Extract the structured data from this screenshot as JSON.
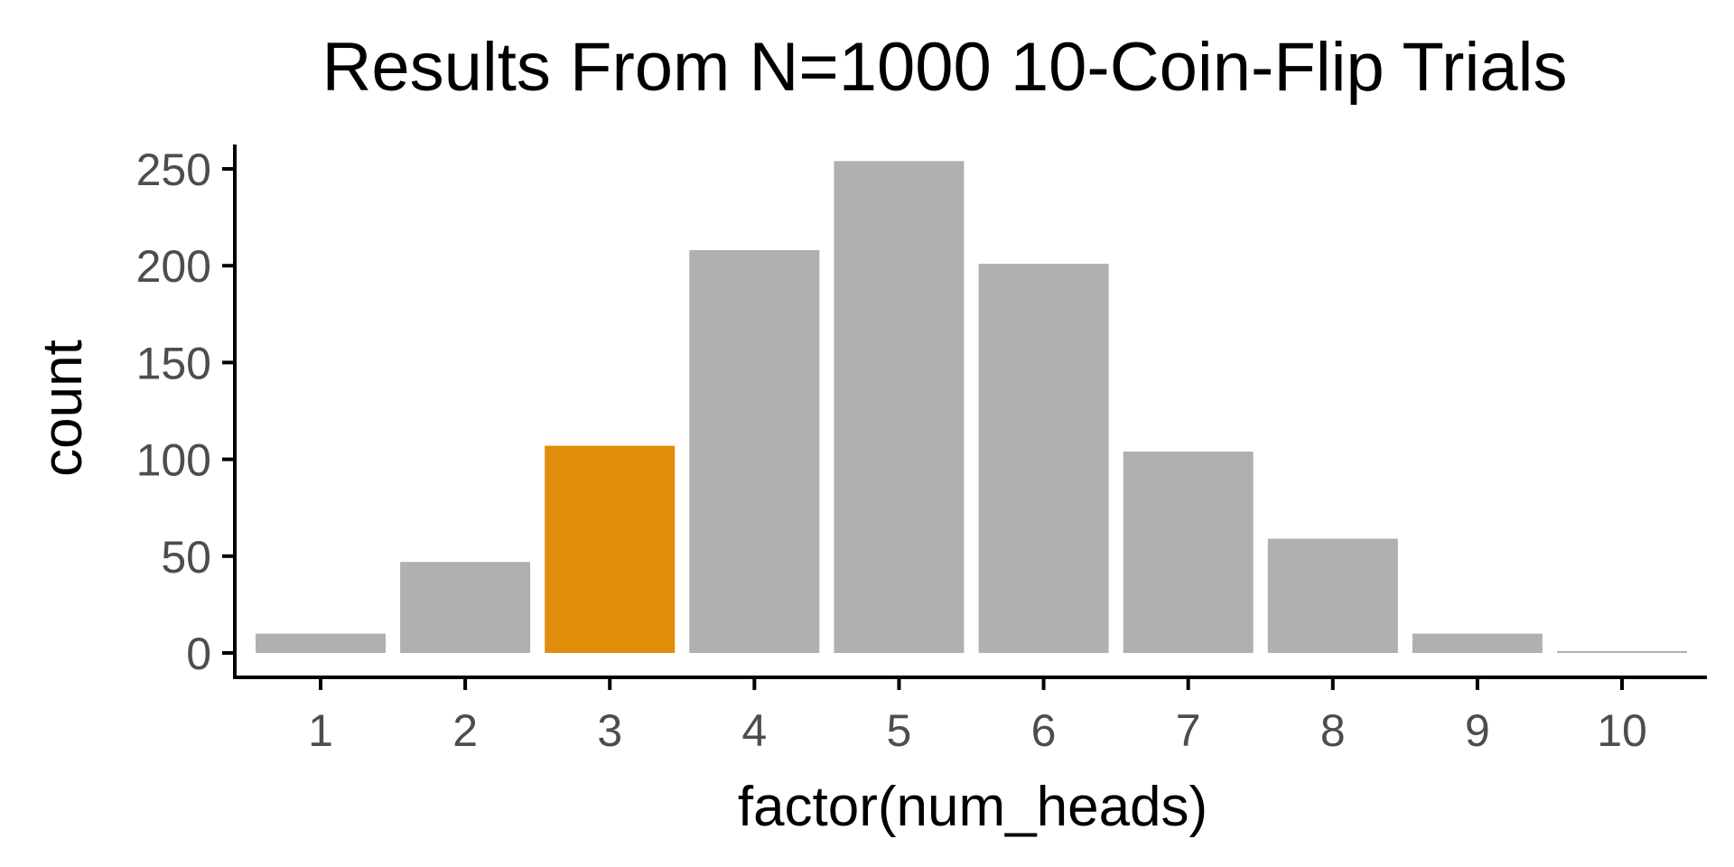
{
  "chart_data": {
    "type": "bar",
    "title": "Results From N=1000 10-Coin-Flip Trials",
    "xlabel": "factor(num_heads)",
    "ylabel": "count",
    "categories": [
      "1",
      "2",
      "3",
      "4",
      "5",
      "6",
      "7",
      "8",
      "9",
      "10"
    ],
    "values": [
      10,
      47,
      107,
      208,
      254,
      201,
      104,
      59,
      10,
      1
    ],
    "highlight_category": "3",
    "colors": {
      "default_bar": "#b0b0b0",
      "highlight_bar": "#df8d0b",
      "axis": "#000000",
      "tick_label": "#4d4d4d"
    },
    "ylim": [
      0,
      260
    ],
    "y_ticks": [
      0,
      50,
      100,
      150,
      200,
      250
    ],
    "grid": false,
    "legend": "none"
  }
}
